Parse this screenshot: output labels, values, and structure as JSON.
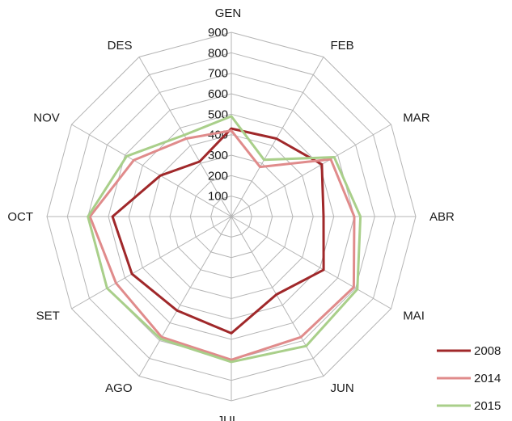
{
  "chart_data": {
    "type": "radar",
    "title": "",
    "categories": [
      "GEN",
      "FEB",
      "MAR",
      "ABR",
      "MAI",
      "JUN",
      "JUL",
      "AGO",
      "SET",
      "OCT",
      "NOV",
      "DES"
    ],
    "rlim": [
      0,
      900
    ],
    "ticks": [
      100,
      200,
      300,
      400,
      500,
      600,
      700,
      800,
      900
    ],
    "grid": true,
    "legend_position": "bottom-right",
    "series": [
      {
        "name": "2008",
        "color": "#a0282a",
        "values": [
          430,
          440,
          510,
          450,
          520,
          440,
          570,
          530,
          560,
          580,
          400,
          310
        ]
      },
      {
        "name": "2014",
        "color": "#e08b8b",
        "values": [
          420,
          280,
          560,
          600,
          690,
          680,
          700,
          680,
          650,
          690,
          550,
          440
        ]
      },
      {
        "name": "2015",
        "color": "#a9cf8a",
        "values": [
          490,
          320,
          580,
          630,
          710,
          730,
          710,
          690,
          700,
          700,
          590,
          460
        ]
      }
    ]
  }
}
